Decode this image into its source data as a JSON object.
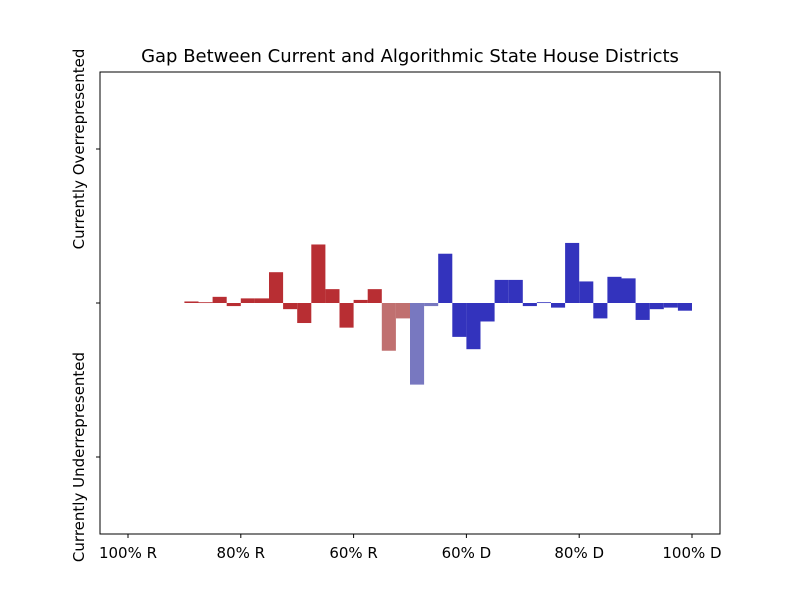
{
  "chart_data": {
    "type": "bar",
    "title": "Gap Between Current and Algorithmic State House Districts",
    "ylabel_top": "Currently Overrepresented",
    "ylabel_bottom": "Currently Underrepresented",
    "xlim": [
      -50,
      50
    ],
    "ylim": [
      -1.4,
      1.4
    ],
    "y_ticks": [
      -1,
      0,
      1
    ],
    "x_ticks": [
      {
        "value": -50,
        "label": "100% R"
      },
      {
        "value": -30,
        "label": "80% R"
      },
      {
        "value": -10,
        "label": "60% R"
      },
      {
        "value": 10,
        "label": "60% D"
      },
      {
        "value": 30,
        "label": "80% D"
      },
      {
        "value": 50,
        "label": "100% D"
      }
    ],
    "bin_width": 2.5,
    "colors": {
      "republican": "#b82e33",
      "lean_republican": "#c07070",
      "lean_democrat": "#7878c0",
      "democrat": "#3333bd"
    },
    "bars": [
      {
        "x": -40.0,
        "value": 0.01,
        "party": "republican"
      },
      {
        "x": -37.5,
        "value": 0.005,
        "party": "republican"
      },
      {
        "x": -35.0,
        "value": 0.04,
        "party": "republican"
      },
      {
        "x": -32.5,
        "value": -0.02,
        "party": "republican"
      },
      {
        "x": -30.0,
        "value": 0.03,
        "party": "republican"
      },
      {
        "x": -27.5,
        "value": 0.03,
        "party": "republican"
      },
      {
        "x": -25.0,
        "value": 0.2,
        "party": "republican"
      },
      {
        "x": -22.5,
        "value": -0.04,
        "party": "republican"
      },
      {
        "x": -20.0,
        "value": -0.13,
        "party": "republican"
      },
      {
        "x": -17.5,
        "value": 0.38,
        "party": "republican"
      },
      {
        "x": -15.0,
        "value": 0.09,
        "party": "republican"
      },
      {
        "x": -12.5,
        "value": -0.16,
        "party": "republican"
      },
      {
        "x": -10.0,
        "value": 0.02,
        "party": "republican"
      },
      {
        "x": -7.5,
        "value": 0.09,
        "party": "republican"
      },
      {
        "x": -5.0,
        "value": -0.31,
        "party": "lean_republican"
      },
      {
        "x": -2.5,
        "value": -0.1,
        "party": "lean_republican"
      },
      {
        "x": 0.0,
        "value": -0.53,
        "party": "lean_democrat"
      },
      {
        "x": 2.5,
        "value": -0.02,
        "party": "lean_democrat"
      },
      {
        "x": 5.0,
        "value": 0.32,
        "party": "democrat"
      },
      {
        "x": 7.5,
        "value": -0.22,
        "party": "democrat"
      },
      {
        "x": 10.0,
        "value": -0.3,
        "party": "democrat"
      },
      {
        "x": 12.5,
        "value": -0.12,
        "party": "democrat"
      },
      {
        "x": 15.0,
        "value": 0.15,
        "party": "democrat"
      },
      {
        "x": 17.5,
        "value": 0.15,
        "party": "democrat"
      },
      {
        "x": 20.0,
        "value": -0.02,
        "party": "democrat"
      },
      {
        "x": 22.5,
        "value": 0.005,
        "party": "democrat"
      },
      {
        "x": 25.0,
        "value": -0.03,
        "party": "democrat"
      },
      {
        "x": 27.5,
        "value": 0.39,
        "party": "democrat"
      },
      {
        "x": 30.0,
        "value": 0.14,
        "party": "democrat"
      },
      {
        "x": 32.5,
        "value": -0.1,
        "party": "democrat"
      },
      {
        "x": 35.0,
        "value": 0.17,
        "party": "democrat"
      },
      {
        "x": 37.5,
        "value": 0.16,
        "party": "democrat"
      },
      {
        "x": 40.0,
        "value": -0.11,
        "party": "democrat"
      },
      {
        "x": 42.5,
        "value": -0.04,
        "party": "democrat"
      },
      {
        "x": 45.0,
        "value": -0.03,
        "party": "democrat"
      },
      {
        "x": 47.5,
        "value": -0.05,
        "party": "democrat"
      }
    ]
  }
}
